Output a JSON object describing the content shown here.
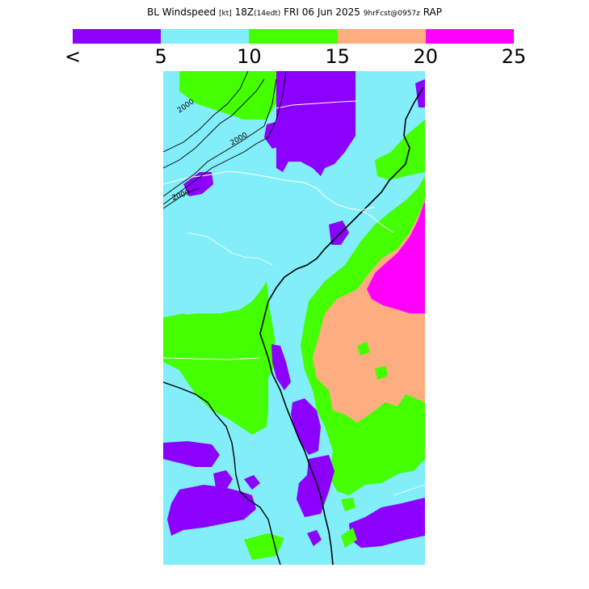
{
  "header": {
    "title_main": "BL Windspeed",
    "unit": "[kt]",
    "valid_time": "18Z",
    "local_time": "(14edt)",
    "date": "FRI 06 Jun 2025",
    "forecast_info": "9hrFcst@0957z",
    "model": "RAP"
  },
  "legend": {
    "colors": [
      "#8b00ff",
      "#82eefa",
      "#44ff00",
      "#fcae80",
      "#ff00ff"
    ],
    "labels": [
      "<",
      "5",
      "10",
      "15",
      "20",
      "25"
    ]
  },
  "map": {
    "contour_labels": [
      "2000",
      "2000",
      "2000"
    ],
    "colors": {
      "calm": "#8b00ff",
      "light": "#82eefa",
      "moderate": "#44ff00",
      "strong": "#fcae80",
      "very_strong": "#ff00ff",
      "coastline": "#000000",
      "borders": "#ffffff"
    }
  }
}
